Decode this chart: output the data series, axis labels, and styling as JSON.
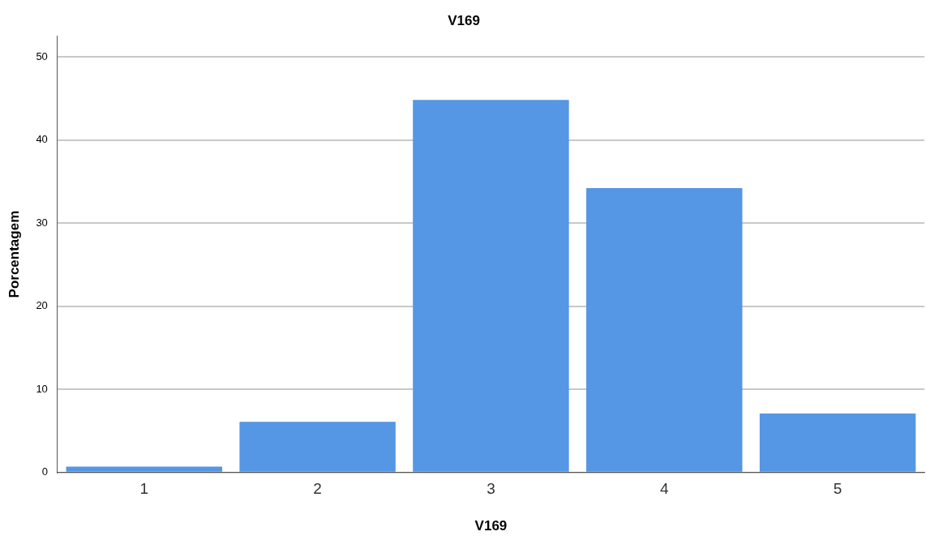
{
  "chart_data": {
    "type": "bar",
    "title": "V169",
    "xlabel": "V169",
    "ylabel": "Porcentagem",
    "categories": [
      "1",
      "2",
      "3",
      "4",
      "5"
    ],
    "values": [
      0.7,
      6.1,
      44.8,
      34.2,
      7.1
    ],
    "color": "#5596e5",
    "ylim": [
      0,
      52.5
    ],
    "yticks": [
      0,
      10,
      20,
      30,
      40,
      50
    ],
    "grid": "y",
    "legend": false
  }
}
